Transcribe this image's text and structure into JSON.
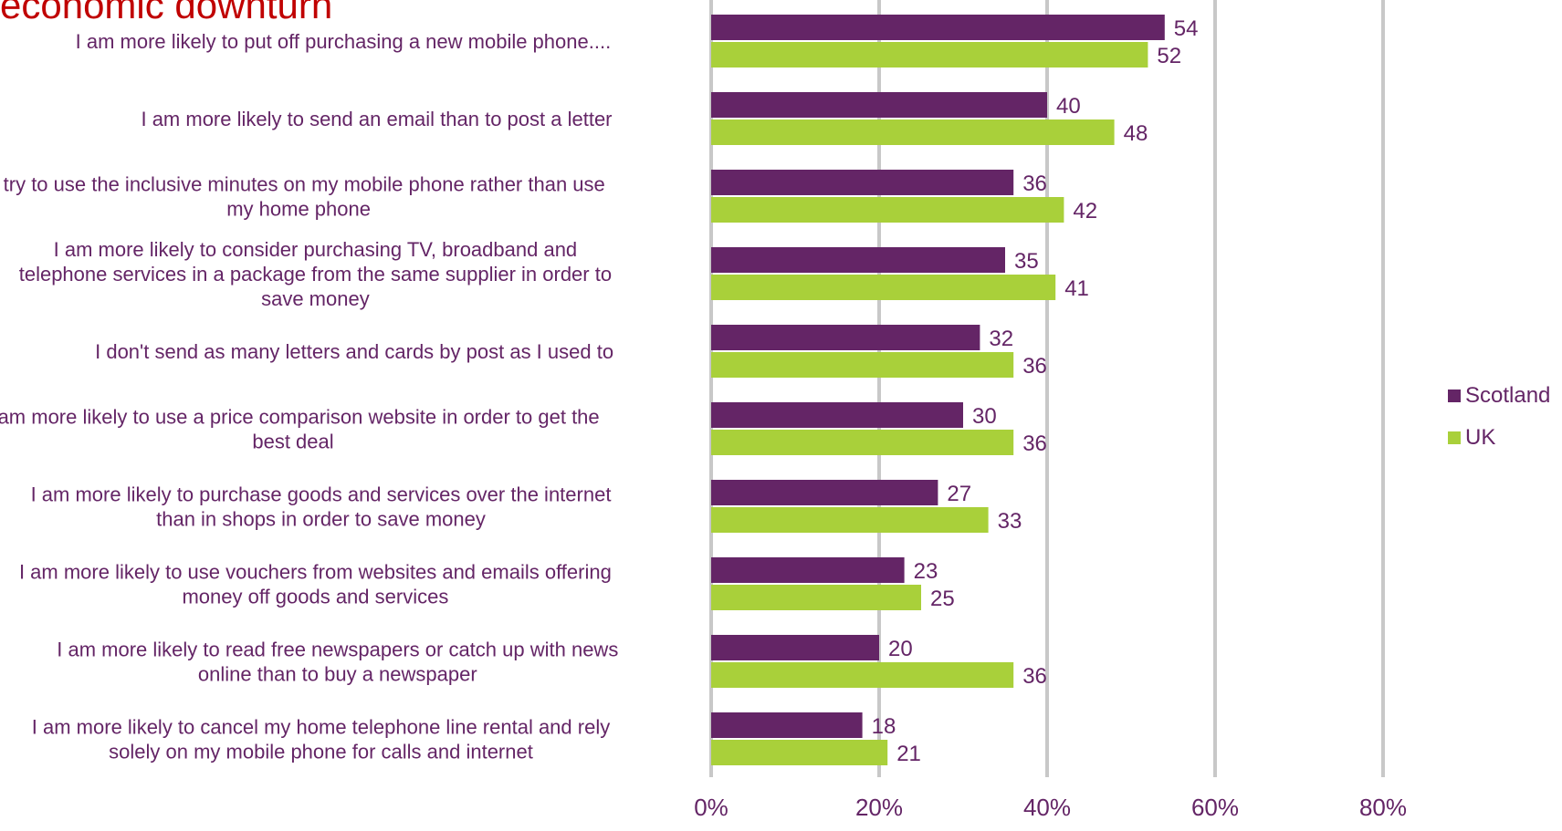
{
  "chart_data": {
    "type": "bar",
    "orientation": "horizontal",
    "title": "economic downturn",
    "title_color": "#c00000",
    "categories": [
      "I am more likely to put off purchasing a new mobile phone....",
      "I am more likely to send an email than to post a letter",
      "I try to use the inclusive minutes on my mobile phone rather than use my home phone",
      "I am more likely to consider purchasing TV, broadband and telephone services in a package from the same supplier in order to save money",
      "I don't send as many letters and cards by post as I used to",
      "I am more likely to use a price comparison website in order to get the best deal",
      "I am more likely to purchase goods and services over the internet than in shops in order to save money",
      "I am more likely to use vouchers from websites and emails offering money off goods and services",
      "I am more likely to read free newspapers or catch up with news online than to buy a newspaper",
      "I am more likely to cancel my home telephone line rental and rely solely on my mobile phone for calls and internet"
    ],
    "category_lines": [
      [
        "I am more likely to put off purchasing a new mobile phone...."
      ],
      [
        "I am more likely to send an email than to post a letter"
      ],
      [
        "I try to use the inclusive minutes on my mobile phone rather than use",
        "my home phone"
      ],
      [
        "I am more likely to consider purchasing TV, broadband and",
        "telephone services in a package from the same supplier in order to",
        "save money"
      ],
      [
        "I don't send as many letters and cards by post as I used to"
      ],
      [
        "I am more likely to use a price comparison website in order to get the",
        "best deal"
      ],
      [
        "I am more likely to purchase goods and services over the internet",
        "than in shops in order to save money"
      ],
      [
        "I am more likely to use vouchers from websites and emails offering",
        "money off goods and services"
      ],
      [
        "I am more likely to read free newspapers or catch up with news",
        "online than to buy a newspaper"
      ],
      [
        "I am more likely to cancel my home telephone line rental and rely",
        "solely on my mobile phone for calls and internet"
      ]
    ],
    "series": [
      {
        "name": "Scotland",
        "color": "#642566",
        "values": [
          54,
          40,
          36,
          35,
          32,
          30,
          27,
          23,
          20,
          18
        ]
      },
      {
        "name": "UK",
        "color": "#a9d03a",
        "values": [
          52,
          48,
          42,
          41,
          36,
          36,
          33,
          25,
          36,
          21
        ]
      }
    ],
    "xlim": [
      0,
      80
    ],
    "xticks": [
      0,
      20,
      40,
      60,
      80
    ],
    "xtick_labels": [
      "0%",
      "20%",
      "40%",
      "60%",
      "80%"
    ],
    "grid": true,
    "legend_position": "right",
    "label_color": "#642566",
    "xlabel": "",
    "ylabel": ""
  }
}
